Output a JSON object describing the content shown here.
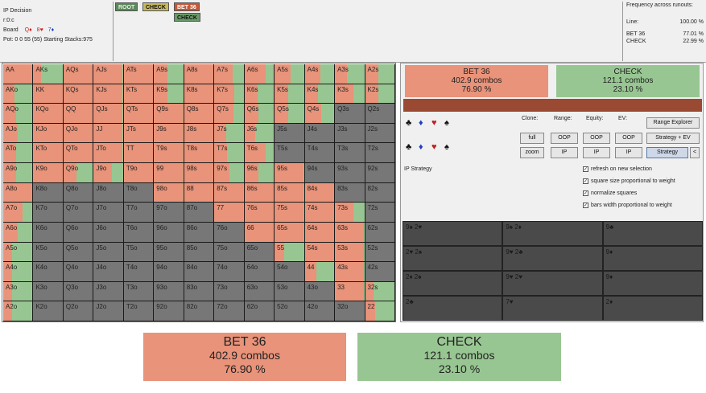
{
  "info": {
    "title": "IP Decision",
    "line": "r:0:c",
    "board_label": "Board",
    "board_cards": [
      {
        "rank": "Q",
        "suit": "♦",
        "color": "#d02020"
      },
      {
        "rank": "8",
        "suit": "♥",
        "color": "#d02020"
      },
      {
        "rank": "7",
        "suit": "♦",
        "color": "#2040c0"
      }
    ],
    "pot": "Pot: 0 0 55 (55) Starting Stacks:975"
  },
  "tree": {
    "nodes": [
      {
        "label": "ROOT",
        "color": "#5a8a5a",
        "text": "#e8f0e8"
      },
      {
        "label": "CHECK",
        "color": "#c8b860",
        "text": "#111"
      },
      {
        "label": "BET 36",
        "color": "#c25a3a",
        "text": "#fff"
      },
      {
        "label": "CHECK",
        "color": "#6a9a6a",
        "text": "#111"
      }
    ]
  },
  "freq": {
    "title": "Frequency across runouts:",
    "line_label": "Line:",
    "line_value": "100.00 %",
    "rows": [
      {
        "label": "BET 36",
        "value": "77.01 %"
      },
      {
        "label": "CHECK",
        "value": "22.99 %"
      }
    ]
  },
  "colors": {
    "bet": "#e8937a",
    "check": "#98c692",
    "grey": "#777777"
  },
  "grid": [
    [
      [
        "AA",
        1.0
      ],
      [
        "AKs",
        0.27
      ],
      [
        "AQs",
        0.99
      ],
      [
        "AJs",
        0.99
      ],
      [
        "ATs",
        0.99
      ],
      [
        "A9s",
        0.46
      ],
      [
        "A8s",
        0.99
      ],
      [
        "A7s",
        0.63
      ],
      [
        "A6s",
        0.72
      ],
      [
        "A5s",
        0.55
      ],
      [
        "A4s",
        0.54
      ],
      [
        "A3s",
        0.4
      ],
      [
        "A2s",
        0.46
      ]
    ],
    [
      [
        "AKo",
        0.38
      ],
      [
        "KK",
        0.99
      ],
      [
        "KQs",
        0.99
      ],
      [
        "KJs",
        0.99
      ],
      [
        "KTs",
        0.99
      ],
      [
        "K9s",
        0.45
      ],
      [
        "K8s",
        0.99
      ],
      [
        "K7s",
        0.67
      ],
      [
        "K6s",
        0.44
      ],
      [
        "K5s",
        0.46
      ],
      [
        "K4s",
        0.46
      ],
      [
        "K3s",
        0.63
      ],
      [
        "K2s",
        0.46
      ]
    ],
    [
      [
        "AQo",
        0.45
      ],
      [
        "KQo",
        0.99
      ],
      [
        "QQ",
        0.99
      ],
      [
        "QJs",
        0.99
      ],
      [
        "QTs",
        0.99
      ],
      [
        "Q9s",
        0.99
      ],
      [
        "Q8s",
        0.99
      ],
      [
        "Q7s",
        0.64
      ],
      [
        "Q6s",
        0.48
      ],
      [
        "Q5s",
        0.45
      ],
      [
        "Q4s",
        0.55
      ],
      [
        "Q3s",
        -1
      ],
      [
        "Q2s",
        -1
      ]
    ],
    [
      [
        "AJo",
        0.49
      ],
      [
        "KJo",
        0.99
      ],
      [
        "QJo",
        0.99
      ],
      [
        "JJ",
        0.99
      ],
      [
        "JTs",
        0.99
      ],
      [
        "J9s",
        0.99
      ],
      [
        "J8s",
        0.99
      ],
      [
        "J7s",
        0.4
      ],
      [
        "J6s",
        0.37
      ],
      [
        "J5s",
        -1
      ],
      [
        "J4s",
        -1
      ],
      [
        "J3s",
        -1
      ],
      [
        "J2s",
        -1
      ]
    ],
    [
      [
        "ATo",
        0.45
      ],
      [
        "KTo",
        0.99
      ],
      [
        "QTo",
        0.99
      ],
      [
        "JTo",
        0.99
      ],
      [
        "TT",
        0.99
      ],
      [
        "T9s",
        0.99
      ],
      [
        "T8s",
        0.99
      ],
      [
        "T7s",
        0.44
      ],
      [
        "T6s",
        0.72
      ],
      [
        "T5s",
        -1
      ],
      [
        "T4s",
        -1
      ],
      [
        "T3s",
        -1
      ],
      [
        "T2s",
        -1
      ]
    ],
    [
      [
        "A9o",
        0.44
      ],
      [
        "K9o",
        0.99
      ],
      [
        "Q9o",
        0.44
      ],
      [
        "J9o",
        0.61
      ],
      [
        "T9o",
        0.99
      ],
      [
        "99",
        0.99
      ],
      [
        "98s",
        0.99
      ],
      [
        "97s",
        0.51
      ],
      [
        "96s",
        0.47
      ],
      [
        "95s",
        0.99
      ],
      [
        "94s",
        -1
      ],
      [
        "93s",
        -1
      ],
      [
        "92s",
        -1
      ]
    ],
    [
      [
        "A8o",
        0.99
      ],
      [
        "K8o",
        -1
      ],
      [
        "Q8o",
        -1
      ],
      [
        "J8o",
        -1
      ],
      [
        "T8o",
        -1
      ],
      [
        "98o",
        0.99
      ],
      [
        "88",
        0.99
      ],
      [
        "87s",
        0.99
      ],
      [
        "86s",
        0.99
      ],
      [
        "85s",
        0.99
      ],
      [
        "84s",
        0.99
      ],
      [
        "83s",
        -1
      ],
      [
        "82s",
        -1
      ]
    ],
    [
      [
        "A7o",
        0.66
      ],
      [
        "K7o",
        -1
      ],
      [
        "Q7o",
        -1
      ],
      [
        "J7o",
        -1
      ],
      [
        "T7o",
        -1
      ],
      [
        "97o",
        -1
      ],
      [
        "87o",
        -1
      ],
      [
        "77",
        0.99
      ],
      [
        "76s",
        0.99
      ],
      [
        "75s",
        0.99
      ],
      [
        "74s",
        0.99
      ],
      [
        "73s",
        0.63
      ],
      [
        "72s",
        -1
      ]
    ],
    [
      [
        "A6o",
        0.5
      ],
      [
        "K6o",
        -1
      ],
      [
        "Q6o",
        -1
      ],
      [
        "J6o",
        -1
      ],
      [
        "T6o",
        -1
      ],
      [
        "96o",
        -1
      ],
      [
        "86o",
        -1
      ],
      [
        "76o",
        -1
      ],
      [
        "66",
        0.99
      ],
      [
        "65s",
        0.99
      ],
      [
        "64s",
        0.99
      ],
      [
        "63s",
        0.99
      ],
      [
        "62s",
        -1
      ]
    ],
    [
      [
        "A5o",
        0.3
      ],
      [
        "K5o",
        -1
      ],
      [
        "Q5o",
        -1
      ],
      [
        "J5o",
        -1
      ],
      [
        "T5o",
        -1
      ],
      [
        "95o",
        -1
      ],
      [
        "85o",
        -1
      ],
      [
        "75o",
        -1
      ],
      [
        "65o",
        -1
      ],
      [
        "55",
        0.32
      ],
      [
        "54s",
        0.99
      ],
      [
        "53s",
        0.99
      ],
      [
        "52s",
        -1
      ]
    ],
    [
      [
        "A4o",
        0.3
      ],
      [
        "K4o",
        -1
      ],
      [
        "Q4o",
        -1
      ],
      [
        "J4o",
        -1
      ],
      [
        "T4o",
        -1
      ],
      [
        "94o",
        -1
      ],
      [
        "84o",
        -1
      ],
      [
        "74o",
        -1
      ],
      [
        "64o",
        -1
      ],
      [
        "54o",
        -1
      ],
      [
        "44",
        0.4
      ],
      [
        "43s",
        0.99
      ],
      [
        "42s",
        -1
      ]
    ],
    [
      [
        "A3o",
        0.3
      ],
      [
        "K3o",
        -1
      ],
      [
        "Q3o",
        -1
      ],
      [
        "J3o",
        -1
      ],
      [
        "T3o",
        -1
      ],
      [
        "93o",
        -1
      ],
      [
        "83o",
        -1
      ],
      [
        "73o",
        -1
      ],
      [
        "63o",
        -1
      ],
      [
        "53o",
        -1
      ],
      [
        "43o",
        -1
      ],
      [
        "33",
        0.99
      ],
      [
        "32s",
        0.3
      ]
    ],
    [
      [
        "A2o",
        0.3
      ],
      [
        "K2o",
        -1
      ],
      [
        "Q2o",
        -1
      ],
      [
        "J2o",
        -1
      ],
      [
        "T2o",
        -1
      ],
      [
        "92o",
        -1
      ],
      [
        "82o",
        -1
      ],
      [
        "72o",
        -1
      ],
      [
        "62o",
        -1
      ],
      [
        "52o",
        -1
      ],
      [
        "42o",
        -1
      ],
      [
        "32o",
        -1
      ],
      [
        "22",
        0.35
      ]
    ]
  ],
  "panel": {
    "bet": {
      "name": "BET 36",
      "combos": "402.9 combos",
      "pct": "76.90 %"
    },
    "check": {
      "name": "CHECK",
      "combos": "121.1 combos",
      "pct": "23.10 %"
    },
    "suits_row1": [
      {
        "s": "♣",
        "c": "#111"
      },
      {
        "s": "♦",
        "c": "#2040c0"
      },
      {
        "s": "♥",
        "c": "#c02020"
      },
      {
        "s": "♠",
        "c": "#111"
      }
    ],
    "suits_row2": [
      {
        "s": "♣",
        "c": "#111"
      },
      {
        "s": "♦",
        "c": "#2040c0"
      },
      {
        "s": "♥",
        "c": "#c02020"
      },
      {
        "s": "♠",
        "c": "#111"
      }
    ],
    "headers": {
      "clone": "Clone:",
      "range": "Range:",
      "equity": "Equity:",
      "ev": "EV:"
    },
    "buttons_row1": [
      "full",
      "OOP",
      "OOP",
      "OOP"
    ],
    "buttons_row2": [
      "zoom",
      "IP",
      "IP",
      "IP"
    ],
    "range_explorer": "Range Explorer",
    "strategy_ev": "Strategy + EV",
    "strategy": "Strategy",
    "back": "<",
    "strategy_label": "IP Strategy",
    "checks": [
      "refresh on new selection",
      "square size proportional to weight",
      "normalize squares",
      "bars width proportional to weight"
    ],
    "runouts": [
      {
        "text": "9♠ 2♥",
        "col": 0,
        "row": 0
      },
      {
        "text": "9♠ 2♦",
        "col": 1,
        "row": 0
      },
      {
        "text": "9♣",
        "col": 2,
        "row": 0
      },
      {
        "text": "2♥ 2♠",
        "col": 0,
        "row": 1
      },
      {
        "text": "9♥ 2♣",
        "col": 1,
        "row": 1
      },
      {
        "text": "9♦",
        "col": 2,
        "row": 1
      },
      {
        "text": "2♦ 2♠",
        "col": 0,
        "row": 2
      },
      {
        "text": "9♥ 2♥",
        "col": 1,
        "row": 2
      },
      {
        "text": "9♦",
        "col": 2,
        "row": 2
      },
      {
        "text": "2♣",
        "col": 0,
        "row": 3
      },
      {
        "text": "7♥",
        "col": 1,
        "row": 3
      },
      {
        "text": "2♦",
        "col": 2,
        "row": 3
      }
    ]
  },
  "summary": {
    "bet": {
      "name": "BET 36",
      "combos": "402.9 combos",
      "pct": "76.90 %"
    },
    "check": {
      "name": "CHECK",
      "combos": "121.1 combos",
      "pct": "23.10 %"
    }
  }
}
